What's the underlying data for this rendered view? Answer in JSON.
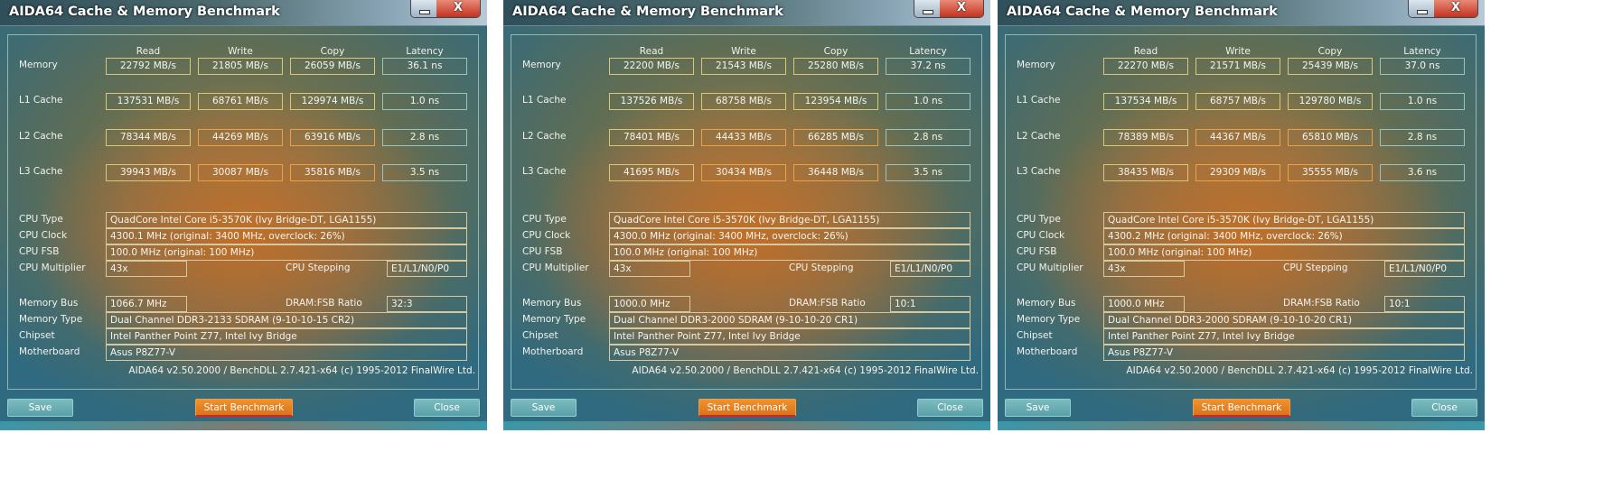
{
  "windows": [
    {
      "title": "AIDA64 Cache & Memory Benchmark",
      "headers": [
        "Read",
        "Write",
        "Copy",
        "Latency"
      ],
      "rows": [
        {
          "label": "Memory",
          "read": "22792 MB/s",
          "write": "21805 MB/s",
          "copy": "26059 MB/s",
          "latency": "36.1 ns"
        },
        {
          "label": "L1 Cache",
          "read": "137531 MB/s",
          "write": "68761 MB/s",
          "copy": "129974 MB/s",
          "latency": "1.0 ns"
        },
        {
          "label": "L2 Cache",
          "read": "78344 MB/s",
          "write": "44269 MB/s",
          "copy": "63916 MB/s",
          "latency": "2.8 ns"
        },
        {
          "label": "L3 Cache",
          "read": "39943 MB/s",
          "write": "30087 MB/s",
          "copy": "35816 MB/s",
          "latency": "3.5 ns"
        }
      ],
      "info": {
        "cpu_type_label": "CPU Type",
        "cpu_type": "QuadCore Intel Core i5-3570K  (Ivy Bridge-DT, LGA1155)",
        "cpu_clock_label": "CPU Clock",
        "cpu_clock": "4300.1 MHz  (original: 3400 MHz, overclock: 26%)",
        "cpu_fsb_label": "CPU FSB",
        "cpu_fsb": "100.0 MHz  (original: 100 MHz)",
        "cpu_multiplier_label": "CPU Multiplier",
        "cpu_multiplier": "43x",
        "cpu_stepping_label": "CPU Stepping",
        "cpu_stepping": "E1/L1/N0/P0",
        "memory_bus_label": "Memory Bus",
        "memory_bus": "1066.7 MHz",
        "dram_fsb_label": "DRAM:FSB Ratio",
        "dram_fsb": "32:3",
        "memory_type_label": "Memory Type",
        "memory_type": "Dual Channel DDR3-2133 SDRAM  (9-10-10-15 CR2)",
        "chipset_label": "Chipset",
        "chipset": "Intel Panther Point Z77, Intel Ivy Bridge",
        "motherboard_label": "Motherboard",
        "motherboard": "Asus P8Z77-V"
      },
      "footer": "AIDA64 v2.50.2000 / BenchDLL 2.7.421-x64  (c) 1995-2012 FinalWire Ltd.",
      "buttons": {
        "save": "Save",
        "start": "Start Benchmark",
        "close": "Close",
        "close_glyph": "X"
      }
    },
    {
      "title": "AIDA64 Cache & Memory Benchmark",
      "headers": [
        "Read",
        "Write",
        "Copy",
        "Latency"
      ],
      "rows": [
        {
          "label": "Memory",
          "read": "22200 MB/s",
          "write": "21543 MB/s",
          "copy": "25280 MB/s",
          "latency": "37.2 ns"
        },
        {
          "label": "L1 Cache",
          "read": "137526 MB/s",
          "write": "68758 MB/s",
          "copy": "123954 MB/s",
          "latency": "1.0 ns"
        },
        {
          "label": "L2 Cache",
          "read": "78401 MB/s",
          "write": "44433 MB/s",
          "copy": "66285 MB/s",
          "latency": "2.8 ns"
        },
        {
          "label": "L3 Cache",
          "read": "41695 MB/s",
          "write": "30434 MB/s",
          "copy": "36448 MB/s",
          "latency": "3.5 ns"
        }
      ],
      "info": {
        "cpu_type_label": "CPU Type",
        "cpu_type": "QuadCore Intel Core i5-3570K  (Ivy Bridge-DT, LGA1155)",
        "cpu_clock_label": "CPU Clock",
        "cpu_clock": "4300.0 MHz  (original: 3400 MHz, overclock: 26%)",
        "cpu_fsb_label": "CPU FSB",
        "cpu_fsb": "100.0 MHz  (original: 100 MHz)",
        "cpu_multiplier_label": "CPU Multiplier",
        "cpu_multiplier": "43x",
        "cpu_stepping_label": "CPU Stepping",
        "cpu_stepping": "E1/L1/N0/P0",
        "memory_bus_label": "Memory Bus",
        "memory_bus": "1000.0 MHz",
        "dram_fsb_label": "DRAM:FSB Ratio",
        "dram_fsb": "10:1",
        "memory_type_label": "Memory Type",
        "memory_type": "Dual Channel DDR3-2000 SDRAM  (9-10-10-20 CR1)",
        "chipset_label": "Chipset",
        "chipset": "Intel Panther Point Z77, Intel Ivy Bridge",
        "motherboard_label": "Motherboard",
        "motherboard": "Asus P8Z77-V"
      },
      "footer": "AIDA64 v2.50.2000 / BenchDLL 2.7.421-x64  (c) 1995-2012 FinalWire Ltd.",
      "buttons": {
        "save": "Save",
        "start": "Start Benchmark",
        "close": "Close",
        "close_glyph": "X"
      }
    },
    {
      "title": "AIDA64 Cache & Memory Benchmark",
      "headers": [
        "Read",
        "Write",
        "Copy",
        "Latency"
      ],
      "rows": [
        {
          "label": "Memory",
          "read": "22270 MB/s",
          "write": "21571 MB/s",
          "copy": "25439 MB/s",
          "latency": "37.0 ns"
        },
        {
          "label": "L1 Cache",
          "read": "137534 MB/s",
          "write": "68757 MB/s",
          "copy": "129780 MB/s",
          "latency": "1.0 ns"
        },
        {
          "label": "L2 Cache",
          "read": "78389 MB/s",
          "write": "44367 MB/s",
          "copy": "65810 MB/s",
          "latency": "2.8 ns"
        },
        {
          "label": "L3 Cache",
          "read": "38435 MB/s",
          "write": "29309 MB/s",
          "copy": "35555 MB/s",
          "latency": "3.6 ns"
        }
      ],
      "info": {
        "cpu_type_label": "CPU Type",
        "cpu_type": "QuadCore Intel Core i5-3570K  (Ivy Bridge-DT, LGA1155)",
        "cpu_clock_label": "CPU Clock",
        "cpu_clock": "4300.2 MHz  (original: 3400 MHz, overclock: 26%)",
        "cpu_fsb_label": "CPU FSB",
        "cpu_fsb": "100.0 MHz  (original: 100 MHz)",
        "cpu_multiplier_label": "CPU Multiplier",
        "cpu_multiplier": "43x",
        "cpu_stepping_label": "CPU Stepping",
        "cpu_stepping": "E1/L1/N0/P0",
        "memory_bus_label": "Memory Bus",
        "memory_bus": "1000.0 MHz",
        "dram_fsb_label": "DRAM:FSB Ratio",
        "dram_fsb": "10:1",
        "memory_type_label": "Memory Type",
        "memory_type": "Dual Channel DDR3-2000 SDRAM  (9-10-10-20 CR1)",
        "chipset_label": "Chipset",
        "chipset": "Intel Panther Point Z77, Intel Ivy Bridge",
        "motherboard_label": "Motherboard",
        "motherboard": "Asus P8Z77-V"
      },
      "footer": "AIDA64 v2.50.2000 / BenchDLL 2.7.421-x64  (c) 1995-2012 FinalWire Ltd.",
      "buttons": {
        "save": "Save",
        "start": "Start Benchmark",
        "close": "Close",
        "close_glyph": "X"
      }
    }
  ]
}
